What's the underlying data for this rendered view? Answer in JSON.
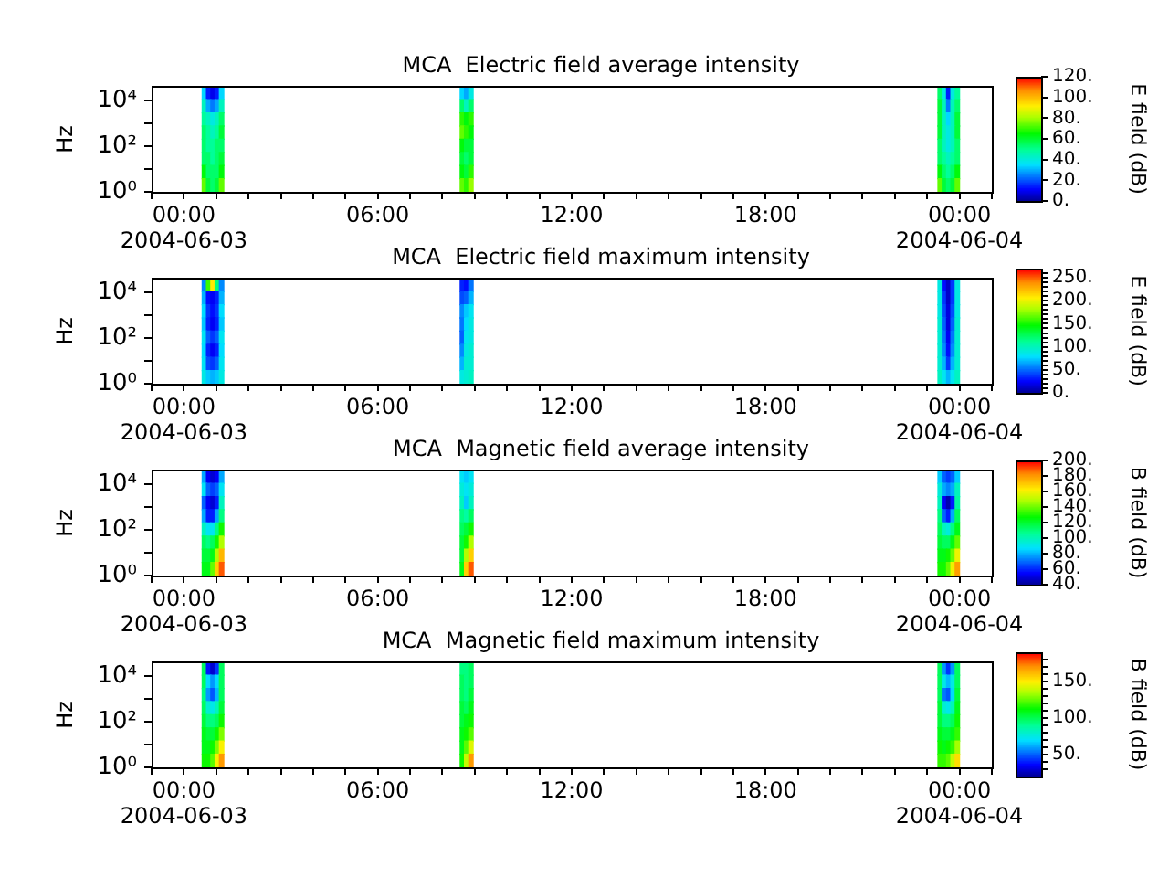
{
  "chart_data": [
    {
      "type": "heatmap",
      "title": "MCA  Electric field average intensity",
      "ylabel": "Hz",
      "clabel": "E field (dB)",
      "log": "y",
      "x": [
        "2004-06-03T00:38",
        "2004-06-03T00:46",
        "2004-06-03T00:54",
        "2004-06-03T01:02",
        "2004-06-03T01:10",
        "2004-06-03T01:18",
        "2004-06-03T08:29",
        "2004-06-03T08:37",
        "2004-06-03T08:45",
        "2004-06-03T08:53",
        "2004-06-03T09:01",
        "2004-06-03T23:16",
        "2004-06-03T23:24",
        "2004-06-03T23:32",
        "2004-06-03T23:40",
        "2004-06-03T23:48",
        "2004-06-03T23:56"
      ],
      "xlim": [
        "2004-06-02T23:00",
        "2004-06-04T01:00"
      ],
      "xticks": [
        {
          "value": "2004-06-02T23:00",
          "label": null
        },
        {
          "value": "2004-06-03T00:00",
          "label": "00:00\n2004-06-03"
        },
        {
          "value": "2004-06-03T01:00",
          "label": null
        },
        {
          "value": "2004-06-03T02:00",
          "label": null
        },
        {
          "value": "2004-06-03T03:00",
          "label": null
        },
        {
          "value": "2004-06-03T04:00",
          "label": null
        },
        {
          "value": "2004-06-03T05:00",
          "label": null
        },
        {
          "value": "2004-06-03T06:00",
          "label": "06:00"
        },
        {
          "value": "2004-06-03T07:00",
          "label": null
        },
        {
          "value": "2004-06-03T08:00",
          "label": null
        },
        {
          "value": "2004-06-03T09:00",
          "label": null
        },
        {
          "value": "2004-06-03T10:00",
          "label": null
        },
        {
          "value": "2004-06-03T11:00",
          "label": null
        },
        {
          "value": "2004-06-03T12:00",
          "label": "12:00"
        },
        {
          "value": "2004-06-03T13:00",
          "label": null
        },
        {
          "value": "2004-06-03T14:00",
          "label": null
        },
        {
          "value": "2004-06-03T15:00",
          "label": null
        },
        {
          "value": "2004-06-03T16:00",
          "label": null
        },
        {
          "value": "2004-06-03T17:00",
          "label": null
        },
        {
          "value": "2004-06-03T18:00",
          "label": "18:00"
        },
        {
          "value": "2004-06-03T19:00",
          "label": null
        },
        {
          "value": "2004-06-03T20:00",
          "label": null
        },
        {
          "value": "2004-06-03T21:00",
          "label": null
        },
        {
          "value": "2004-06-03T22:00",
          "label": null
        },
        {
          "value": "2004-06-03T23:00",
          "label": null
        },
        {
          "value": "2004-06-04T00:00",
          "label": "00:00\n2004-06-04"
        },
        {
          "value": "2004-06-04T01:00",
          "label": null
        }
      ],
      "ylim": [
        1,
        40000
      ],
      "yticks": [
        {
          "value": 1,
          "label": "10⁰"
        },
        {
          "value": 10,
          "label": null
        },
        {
          "value": 100,
          "label": "10²"
        },
        {
          "value": 1000,
          "label": null
        },
        {
          "value": 10000,
          "label": "10⁴"
        }
      ],
      "clim": [
        0,
        120
      ],
      "cticks": [
        {
          "value": 0,
          "label": "0."
        },
        {
          "value": 20,
          "label": "20."
        },
        {
          "value": 40,
          "label": "40."
        },
        {
          "value": 60,
          "label": "60."
        },
        {
          "value": 80,
          "label": "80."
        },
        {
          "value": 100,
          "label": "100."
        },
        {
          "value": 120,
          "label": "120."
        }
      ],
      "cells": [
        [
          35,
          15,
          10,
          15,
          35,
          null,
          null,
          35,
          30,
          40,
          null,
          null,
          55,
          40,
          15,
          40,
          50
        ],
        [
          45,
          30,
          25,
          30,
          45,
          null,
          null,
          55,
          45,
          55,
          null,
          null,
          60,
          45,
          25,
          45,
          55
        ],
        [
          50,
          45,
          40,
          45,
          55,
          null,
          null,
          70,
          65,
          70,
          null,
          null,
          60,
          45,
          35,
          45,
          60
        ],
        [
          55,
          50,
          45,
          50,
          60,
          null,
          null,
          75,
          70,
          65,
          null,
          null,
          60,
          45,
          40,
          45,
          60
        ],
        [
          55,
          50,
          50,
          55,
          55,
          null,
          null,
          65,
          60,
          60,
          null,
          null,
          55,
          45,
          40,
          45,
          55
        ],
        [
          55,
          55,
          50,
          55,
          60,
          null,
          null,
          60,
          55,
          60,
          null,
          null,
          55,
          50,
          45,
          50,
          55
        ],
        [
          65,
          55,
          55,
          55,
          65,
          null,
          null,
          65,
          60,
          70,
          null,
          null,
          65,
          55,
          50,
          55,
          65
        ],
        [
          75,
          60,
          55,
          60,
          75,
          null,
          null,
          75,
          70,
          80,
          null,
          null,
          75,
          60,
          55,
          60,
          75
        ]
      ]
    },
    {
      "type": "heatmap",
      "title": "MCA  Electric field maximum intensity",
      "ylabel": "Hz",
      "clabel": "E field (dB)",
      "log": "y",
      "x": [
        "2004-06-03T00:38",
        "2004-06-03T00:46",
        "2004-06-03T00:54",
        "2004-06-03T01:02",
        "2004-06-03T01:10",
        "2004-06-03T01:18",
        "2004-06-03T08:29",
        "2004-06-03T08:37",
        "2004-06-03T08:45",
        "2004-06-03T08:53",
        "2004-06-03T09:01",
        "2004-06-03T23:16",
        "2004-06-03T23:24",
        "2004-06-03T23:32",
        "2004-06-03T23:40",
        "2004-06-03T23:48",
        "2004-06-03T23:56"
      ],
      "xlim": [
        "2004-06-02T23:00",
        "2004-06-04T01:00"
      ],
      "xticks": [
        {
          "value": "2004-06-02T23:00",
          "label": null
        },
        {
          "value": "2004-06-03T00:00",
          "label": "00:00\n2004-06-03"
        },
        {
          "value": "2004-06-03T01:00",
          "label": null
        },
        {
          "value": "2004-06-03T02:00",
          "label": null
        },
        {
          "value": "2004-06-03T03:00",
          "label": null
        },
        {
          "value": "2004-06-03T04:00",
          "label": null
        },
        {
          "value": "2004-06-03T05:00",
          "label": null
        },
        {
          "value": "2004-06-03T06:00",
          "label": "06:00"
        },
        {
          "value": "2004-06-03T07:00",
          "label": null
        },
        {
          "value": "2004-06-03T08:00",
          "label": null
        },
        {
          "value": "2004-06-03T09:00",
          "label": null
        },
        {
          "value": "2004-06-03T10:00",
          "label": null
        },
        {
          "value": "2004-06-03T11:00",
          "label": null
        },
        {
          "value": "2004-06-03T12:00",
          "label": "12:00"
        },
        {
          "value": "2004-06-03T13:00",
          "label": null
        },
        {
          "value": "2004-06-03T14:00",
          "label": null
        },
        {
          "value": "2004-06-03T15:00",
          "label": null
        },
        {
          "value": "2004-06-03T16:00",
          "label": null
        },
        {
          "value": "2004-06-03T17:00",
          "label": null
        },
        {
          "value": "2004-06-03T18:00",
          "label": "18:00"
        },
        {
          "value": "2004-06-03T19:00",
          "label": null
        },
        {
          "value": "2004-06-03T20:00",
          "label": null
        },
        {
          "value": "2004-06-03T21:00",
          "label": null
        },
        {
          "value": "2004-06-03T22:00",
          "label": null
        },
        {
          "value": "2004-06-03T23:00",
          "label": null
        },
        {
          "value": "2004-06-04T00:00",
          "label": "00:00\n2004-06-04"
        },
        {
          "value": "2004-06-04T01:00",
          "label": null
        }
      ],
      "ylim": [
        1,
        40000
      ],
      "yticks": [
        {
          "value": 1,
          "label": "10⁰"
        },
        {
          "value": 10,
          "label": null
        },
        {
          "value": 100,
          "label": "10²"
        },
        {
          "value": 1000,
          "label": null
        },
        {
          "value": 10000,
          "label": "10⁴"
        }
      ],
      "clim": [
        0,
        270
      ],
      "cticks": [
        {
          "value": 0,
          "label": "0."
        },
        {
          "value": 10,
          "label": null
        },
        {
          "value": 20,
          "label": null
        },
        {
          "value": 30,
          "label": null
        },
        {
          "value": 40,
          "label": null
        },
        {
          "value": 50,
          "label": "50."
        },
        {
          "value": 60,
          "label": null
        },
        {
          "value": 70,
          "label": null
        },
        {
          "value": 80,
          "label": null
        },
        {
          "value": 90,
          "label": null
        },
        {
          "value": 100,
          "label": "100."
        },
        {
          "value": 110,
          "label": null
        },
        {
          "value": 120,
          "label": null
        },
        {
          "value": 130,
          "label": null
        },
        {
          "value": 140,
          "label": null
        },
        {
          "value": 150,
          "label": "150."
        },
        {
          "value": 160,
          "label": null
        },
        {
          "value": 170,
          "label": null
        },
        {
          "value": 180,
          "label": null
        },
        {
          "value": 190,
          "label": null
        },
        {
          "value": 200,
          "label": "200."
        },
        {
          "value": 210,
          "label": null
        },
        {
          "value": 220,
          "label": null
        },
        {
          "value": 230,
          "label": null
        },
        {
          "value": 240,
          "label": null
        },
        {
          "value": 250,
          "label": "250."
        },
        {
          "value": 260,
          "label": null
        }
      ],
      "cells": [
        [
          60,
          160,
          210,
          120,
          60,
          null,
          null,
          35,
          30,
          55,
          null,
          null,
          90,
          30,
          15,
          40,
          90
        ],
        [
          70,
          30,
          25,
          35,
          70,
          null,
          null,
          45,
          50,
          70,
          null,
          null,
          90,
          40,
          15,
          40,
          90
        ],
        [
          80,
          40,
          30,
          40,
          80,
          null,
          null,
          60,
          75,
          85,
          null,
          null,
          90,
          45,
          20,
          45,
          90
        ],
        [
          75,
          35,
          25,
          35,
          75,
          null,
          null,
          55,
          80,
          90,
          null,
          null,
          95,
          50,
          20,
          50,
          95
        ],
        [
          85,
          50,
          40,
          50,
          85,
          null,
          null,
          50,
          85,
          90,
          null,
          null,
          95,
          55,
          25,
          55,
          95
        ],
        [
          80,
          35,
          25,
          35,
          80,
          null,
          null,
          60,
          90,
          95,
          null,
          null,
          95,
          60,
          30,
          60,
          95
        ],
        [
          85,
          45,
          40,
          50,
          85,
          null,
          null,
          70,
          95,
          95,
          null,
          null,
          95,
          70,
          40,
          70,
          95
        ],
        [
          90,
          75,
          70,
          75,
          90,
          null,
          null,
          90,
          95,
          100,
          null,
          null,
          100,
          85,
          70,
          85,
          100
        ]
      ]
    },
    {
      "type": "heatmap",
      "title": "MCA  Magnetic field average intensity",
      "ylabel": "Hz",
      "clabel": "B field (dB)",
      "log": "y",
      "x": [
        "2004-06-03T00:38",
        "2004-06-03T00:46",
        "2004-06-03T00:54",
        "2004-06-03T01:02",
        "2004-06-03T01:10",
        "2004-06-03T01:18",
        "2004-06-03T08:29",
        "2004-06-03T08:37",
        "2004-06-03T08:45",
        "2004-06-03T08:53",
        "2004-06-03T09:01",
        "2004-06-03T23:16",
        "2004-06-03T23:24",
        "2004-06-03T23:32",
        "2004-06-03T23:40",
        "2004-06-03T23:48",
        "2004-06-03T23:56"
      ],
      "xlim": [
        "2004-06-02T23:00",
        "2004-06-04T01:00"
      ],
      "xticks": [
        {
          "value": "2004-06-02T23:00",
          "label": null
        },
        {
          "value": "2004-06-03T00:00",
          "label": "00:00\n2004-06-03"
        },
        {
          "value": "2004-06-03T01:00",
          "label": null
        },
        {
          "value": "2004-06-03T02:00",
          "label": null
        },
        {
          "value": "2004-06-03T03:00",
          "label": null
        },
        {
          "value": "2004-06-03T04:00",
          "label": null
        },
        {
          "value": "2004-06-03T05:00",
          "label": null
        },
        {
          "value": "2004-06-03T06:00",
          "label": "06:00"
        },
        {
          "value": "2004-06-03T07:00",
          "label": null
        },
        {
          "value": "2004-06-03T08:00",
          "label": null
        },
        {
          "value": "2004-06-03T09:00",
          "label": null
        },
        {
          "value": "2004-06-03T10:00",
          "label": null
        },
        {
          "value": "2004-06-03T11:00",
          "label": null
        },
        {
          "value": "2004-06-03T12:00",
          "label": "12:00"
        },
        {
          "value": "2004-06-03T13:00",
          "label": null
        },
        {
          "value": "2004-06-03T14:00",
          "label": null
        },
        {
          "value": "2004-06-03T15:00",
          "label": null
        },
        {
          "value": "2004-06-03T16:00",
          "label": null
        },
        {
          "value": "2004-06-03T17:00",
          "label": null
        },
        {
          "value": "2004-06-03T18:00",
          "label": "18:00"
        },
        {
          "value": "2004-06-03T19:00",
          "label": null
        },
        {
          "value": "2004-06-03T20:00",
          "label": null
        },
        {
          "value": "2004-06-03T21:00",
          "label": null
        },
        {
          "value": "2004-06-03T22:00",
          "label": null
        },
        {
          "value": "2004-06-03T23:00",
          "label": null
        },
        {
          "value": "2004-06-04T00:00",
          "label": "00:00\n2004-06-04"
        },
        {
          "value": "2004-06-04T01:00",
          "label": null
        }
      ],
      "ylim": [
        1,
        40000
      ],
      "yticks": [
        {
          "value": 1,
          "label": "10⁰"
        },
        {
          "value": 10,
          "label": null
        },
        {
          "value": 100,
          "label": "10²"
        },
        {
          "value": 1000,
          "label": null
        },
        {
          "value": 10000,
          "label": "10⁴"
        }
      ],
      "clim": [
        40,
        200
      ],
      "cticks": [
        {
          "value": 40,
          "label": "40."
        },
        {
          "value": 60,
          "label": "60."
        },
        {
          "value": 80,
          "label": "80."
        },
        {
          "value": 100,
          "label": "100."
        },
        {
          "value": 120,
          "label": "120."
        },
        {
          "value": 140,
          "label": "140."
        },
        {
          "value": 160,
          "label": "160."
        },
        {
          "value": 180,
          "label": "180."
        },
        {
          "value": 200,
          "label": "200."
        }
      ],
      "cells": [
        [
          80,
          55,
          50,
          55,
          80,
          null,
          null,
          90,
          85,
          90,
          null,
          null,
          85,
          70,
          65,
          70,
          85
        ],
        [
          90,
          70,
          65,
          70,
          90,
          null,
          null,
          95,
          90,
          95,
          null,
          null,
          95,
          80,
          75,
          80,
          100
        ],
        [
          70,
          55,
          50,
          60,
          100,
          null,
          null,
          100,
          85,
          100,
          null,
          null,
          100,
          55,
          45,
          60,
          105
        ],
        [
          80,
          60,
          60,
          80,
          110,
          null,
          null,
          110,
          105,
          115,
          null,
          null,
          110,
          70,
          60,
          80,
          115
        ],
        [
          100,
          90,
          90,
          110,
          130,
          null,
          null,
          115,
          120,
          130,
          null,
          null,
          115,
          100,
          95,
          110,
          125
        ],
        [
          115,
          110,
          115,
          130,
          150,
          null,
          null,
          120,
          130,
          150,
          null,
          null,
          120,
          115,
          115,
          125,
          140
        ],
        [
          120,
          120,
          125,
          150,
          175,
          null,
          null,
          120,
          150,
          170,
          null,
          null,
          125,
          125,
          130,
          140,
          160
        ],
        [
          125,
          125,
          140,
          170,
          190,
          null,
          null,
          125,
          170,
          190,
          null,
          null,
          130,
          130,
          140,
          160,
          180
        ]
      ]
    },
    {
      "type": "heatmap",
      "title": "MCA  Magnetic field maximum intensity",
      "ylabel": "Hz",
      "clabel": "B field (dB)",
      "log": "y",
      "x": [
        "2004-06-03T00:38",
        "2004-06-03T00:46",
        "2004-06-03T00:54",
        "2004-06-03T01:02",
        "2004-06-03T01:10",
        "2004-06-03T01:18",
        "2004-06-03T08:29",
        "2004-06-03T08:37",
        "2004-06-03T08:45",
        "2004-06-03T08:53",
        "2004-06-03T09:01",
        "2004-06-03T23:16",
        "2004-06-03T23:24",
        "2004-06-03T23:32",
        "2004-06-03T23:40",
        "2004-06-03T23:48",
        "2004-06-03T23:56"
      ],
      "xlim": [
        "2004-06-02T23:00",
        "2004-06-04T01:00"
      ],
      "xticks": [
        {
          "value": "2004-06-02T23:00",
          "label": null
        },
        {
          "value": "2004-06-03T00:00",
          "label": "00:00\n2004-06-03"
        },
        {
          "value": "2004-06-03T01:00",
          "label": null
        },
        {
          "value": "2004-06-03T02:00",
          "label": null
        },
        {
          "value": "2004-06-03T03:00",
          "label": null
        },
        {
          "value": "2004-06-03T04:00",
          "label": null
        },
        {
          "value": "2004-06-03T05:00",
          "label": null
        },
        {
          "value": "2004-06-03T06:00",
          "label": "06:00"
        },
        {
          "value": "2004-06-03T07:00",
          "label": null
        },
        {
          "value": "2004-06-03T08:00",
          "label": null
        },
        {
          "value": "2004-06-03T09:00",
          "label": null
        },
        {
          "value": "2004-06-03T10:00",
          "label": null
        },
        {
          "value": "2004-06-03T11:00",
          "label": null
        },
        {
          "value": "2004-06-03T12:00",
          "label": "12:00"
        },
        {
          "value": "2004-06-03T13:00",
          "label": null
        },
        {
          "value": "2004-06-03T14:00",
          "label": null
        },
        {
          "value": "2004-06-03T15:00",
          "label": null
        },
        {
          "value": "2004-06-03T16:00",
          "label": null
        },
        {
          "value": "2004-06-03T17:00",
          "label": null
        },
        {
          "value": "2004-06-03T18:00",
          "label": "18:00"
        },
        {
          "value": "2004-06-03T19:00",
          "label": null
        },
        {
          "value": "2004-06-03T20:00",
          "label": null
        },
        {
          "value": "2004-06-03T21:00",
          "label": null
        },
        {
          "value": "2004-06-03T22:00",
          "label": null
        },
        {
          "value": "2004-06-03T23:00",
          "label": null
        },
        {
          "value": "2004-06-04T00:00",
          "label": "00:00\n2004-06-04"
        },
        {
          "value": "2004-06-04T01:00",
          "label": null
        }
      ],
      "ylim": [
        1,
        40000
      ],
      "yticks": [
        {
          "value": 1,
          "label": "10⁰"
        },
        {
          "value": 10,
          "label": null
        },
        {
          "value": 100,
          "label": "10²"
        },
        {
          "value": 1000,
          "label": null
        },
        {
          "value": 10000,
          "label": "10⁴"
        }
      ],
      "clim": [
        20,
        190
      ],
      "cticks": [
        {
          "value": 30,
          "label": null
        },
        {
          "value": 40,
          "label": null
        },
        {
          "value": 50,
          "label": "50."
        },
        {
          "value": 60,
          "label": null
        },
        {
          "value": 70,
          "label": null
        },
        {
          "value": 80,
          "label": null
        },
        {
          "value": 90,
          "label": null
        },
        {
          "value": 100,
          "label": "100."
        },
        {
          "value": 110,
          "label": null
        },
        {
          "value": 120,
          "label": null
        },
        {
          "value": 130,
          "label": null
        },
        {
          "value": 140,
          "label": null
        },
        {
          "value": 150,
          "label": "150."
        },
        {
          "value": 160,
          "label": null
        },
        {
          "value": 170,
          "label": null
        },
        {
          "value": 180,
          "label": null
        }
      ],
      "cells": [
        [
          100,
          40,
          30,
          45,
          100,
          null,
          null,
          95,
          95,
          100,
          null,
          null,
          100,
          60,
          45,
          60,
          100
        ],
        [
          100,
          70,
          60,
          70,
          100,
          null,
          null,
          100,
          95,
          100,
          null,
          null,
          100,
          75,
          65,
          75,
          100
        ],
        [
          95,
          60,
          50,
          65,
          100,
          null,
          null,
          100,
          95,
          105,
          null,
          null,
          100,
          55,
          50,
          70,
          105
        ],
        [
          100,
          80,
          75,
          85,
          105,
          null,
          null,
          105,
          100,
          110,
          null,
          null,
          105,
          80,
          75,
          85,
          110
        ],
        [
          105,
          95,
          95,
          100,
          115,
          null,
          null,
          105,
          110,
          115,
          null,
          null,
          105,
          95,
          95,
          100,
          115
        ],
        [
          110,
          105,
          105,
          115,
          130,
          null,
          null,
          110,
          115,
          125,
          null,
          null,
          110,
          105,
          105,
          110,
          120
        ],
        [
          110,
          110,
          115,
          130,
          150,
          null,
          null,
          110,
          125,
          145,
          null,
          null,
          115,
          110,
          115,
          120,
          135
        ],
        [
          115,
          115,
          125,
          150,
          170,
          null,
          null,
          115,
          140,
          170,
          null,
          null,
          120,
          120,
          125,
          140,
          155
        ]
      ]
    }
  ]
}
